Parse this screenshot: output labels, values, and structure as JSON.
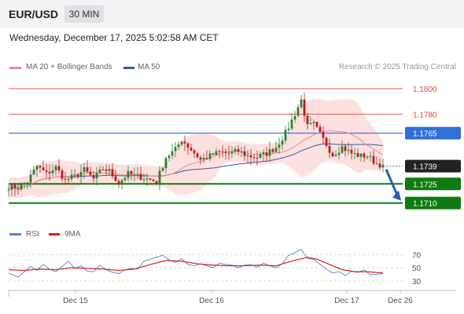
{
  "header": {
    "symbol": "EUR/USD",
    "timeframe": "30 MIN",
    "datetime": "Wednesday, December 17, 2025 5:02:58 AM CET"
  },
  "legend": {
    "ma20": "MA 20 + Bollinger Bands",
    "ma50": "MA 50",
    "credit": "Research © 2025 Trading Central",
    "rsi": "RSI",
    "rsi_ma": "9MA"
  },
  "colors": {
    "resistance": "#e8443a",
    "pivot": "#2f6fd8",
    "support": "#0f7a0f",
    "last": "#222222",
    "bollinger_fill": "#fde0e0",
    "ma20": "#ef8a8a",
    "ma50": "#3a5a9a",
    "candle_up": "#2e7d32",
    "candle_down": "#b71c1c",
    "rsi": "#5b7fd6",
    "rsi_ma": "#d62020"
  },
  "chart_data": [
    {
      "type": "candlestick",
      "title": "",
      "ylim": [
        1.1698,
        1.1808
      ],
      "x_labels": [
        "Dec 15",
        "Dec 16",
        "Dec 17",
        "Dec 26"
      ],
      "levels": [
        {
          "value": 1.18,
          "label": "1.1800",
          "kind": "resistance"
        },
        {
          "value": 1.178,
          "label": "1.1780",
          "kind": "resistance"
        },
        {
          "value": 1.1765,
          "label": "1.1765",
          "kind": "pivot"
        },
        {
          "value": 1.1739,
          "label": "1.1739",
          "kind": "last"
        },
        {
          "value": 1.1725,
          "label": "1.1725",
          "kind": "support"
        },
        {
          "value": 1.171,
          "label": "1.1710",
          "kind": "support"
        }
      ],
      "forecast": {
        "from": 1.1739,
        "to": 1.171,
        "direction": "down"
      },
      "close_path": [
        [
          0,
          1.1723
        ],
        [
          6,
          1.1722
        ],
        [
          12,
          1.1727
        ],
        [
          18,
          1.1739
        ],
        [
          24,
          1.1733
        ],
        [
          30,
          1.1738
        ],
        [
          36,
          1.1728
        ],
        [
          42,
          1.1731
        ],
        [
          48,
          1.1736
        ],
        [
          54,
          1.1729
        ],
        [
          60,
          1.1737
        ],
        [
          64,
          1.1735
        ],
        [
          70,
          1.1726
        ],
        [
          76,
          1.1733
        ],
        [
          82,
          1.1731
        ],
        [
          88,
          1.1729
        ],
        [
          94,
          1.1727
        ],
        [
          100,
          1.1746
        ],
        [
          106,
          1.1752
        ],
        [
          110,
          1.176
        ],
        [
          116,
          1.1752
        ],
        [
          122,
          1.1744
        ],
        [
          128,
          1.1747
        ],
        [
          134,
          1.175
        ],
        [
          140,
          1.1749
        ],
        [
          146,
          1.1751
        ],
        [
          152,
          1.1747
        ],
        [
          158,
          1.1746
        ],
        [
          164,
          1.1749
        ],
        [
          170,
          1.1754
        ],
        [
          176,
          1.1765
        ],
        [
          180,
          1.1775
        ],
        [
          186,
          1.1791
        ],
        [
          190,
          1.177
        ],
        [
          194,
          1.1772
        ],
        [
          200,
          1.176
        ],
        [
          206,
          1.1748
        ],
        [
          212,
          1.1754
        ],
        [
          218,
          1.1749
        ],
        [
          224,
          1.1747
        ],
        [
          228,
          1.1747
        ],
        [
          234,
          1.1741
        ],
        [
          238,
          1.174
        ]
      ]
    },
    {
      "type": "line",
      "title": "",
      "ylim": [
        25,
        80
      ],
      "y_ticks": [
        70,
        50,
        30
      ],
      "series": [
        {
          "name": "RSI",
          "values": [
            [
              0,
              42
            ],
            [
              6,
              36
            ],
            [
              10,
              44
            ],
            [
              14,
              52
            ],
            [
              18,
              46
            ],
            [
              22,
              55
            ],
            [
              26,
              48
            ],
            [
              30,
              44
            ],
            [
              34,
              52
            ],
            [
              38,
              60
            ],
            [
              42,
              49
            ],
            [
              46,
              53
            ],
            [
              50,
              45
            ],
            [
              54,
              44
            ],
            [
              58,
              54
            ],
            [
              62,
              47
            ],
            [
              66,
              43
            ],
            [
              70,
              41
            ],
            [
              74,
              47
            ],
            [
              78,
              49
            ],
            [
              82,
              48
            ],
            [
              86,
              60
            ],
            [
              90,
              63
            ],
            [
              94,
              66
            ],
            [
              98,
              69
            ],
            [
              102,
              62
            ],
            [
              106,
              58
            ],
            [
              110,
              64
            ],
            [
              114,
              55
            ],
            [
              118,
              53
            ],
            [
              122,
              56
            ],
            [
              126,
              53
            ],
            [
              130,
              50
            ],
            [
              134,
              57
            ],
            [
              138,
              55
            ],
            [
              142,
              54
            ],
            [
              146,
              50
            ],
            [
              150,
              54
            ],
            [
              154,
              55
            ],
            [
              158,
              51
            ],
            [
              162,
              57
            ],
            [
              166,
              53
            ],
            [
              170,
              50
            ],
            [
              174,
              56
            ],
            [
              178,
              69
            ],
            [
              182,
              73
            ],
            [
              186,
              78
            ],
            [
              190,
              64
            ],
            [
              194,
              63
            ],
            [
              198,
              55
            ],
            [
              202,
              48
            ],
            [
              206,
              42
            ],
            [
              210,
              44
            ],
            [
              214,
              38
            ],
            [
              218,
              45
            ],
            [
              222,
              43
            ],
            [
              226,
              47
            ],
            [
              230,
              39
            ],
            [
              234,
              40
            ],
            [
              238,
              41
            ]
          ]
        },
        {
          "name": "9MA",
          "values": [
            [
              0,
              47
            ],
            [
              10,
              46
            ],
            [
              20,
              48
            ],
            [
              30,
              47
            ],
            [
              40,
              50
            ],
            [
              50,
              49
            ],
            [
              60,
              48
            ],
            [
              70,
              46
            ],
            [
              80,
              48
            ],
            [
              90,
              55
            ],
            [
              100,
              61
            ],
            [
              110,
              60
            ],
            [
              120,
              56
            ],
            [
              130,
              54
            ],
            [
              140,
              53
            ],
            [
              150,
              53
            ],
            [
              160,
              54
            ],
            [
              170,
              53
            ],
            [
              180,
              60
            ],
            [
              190,
              66
            ],
            [
              196,
              63
            ],
            [
              204,
              55
            ],
            [
              212,
              47
            ],
            [
              220,
              44
            ],
            [
              228,
              44
            ],
            [
              238,
              42
            ]
          ]
        }
      ]
    }
  ]
}
